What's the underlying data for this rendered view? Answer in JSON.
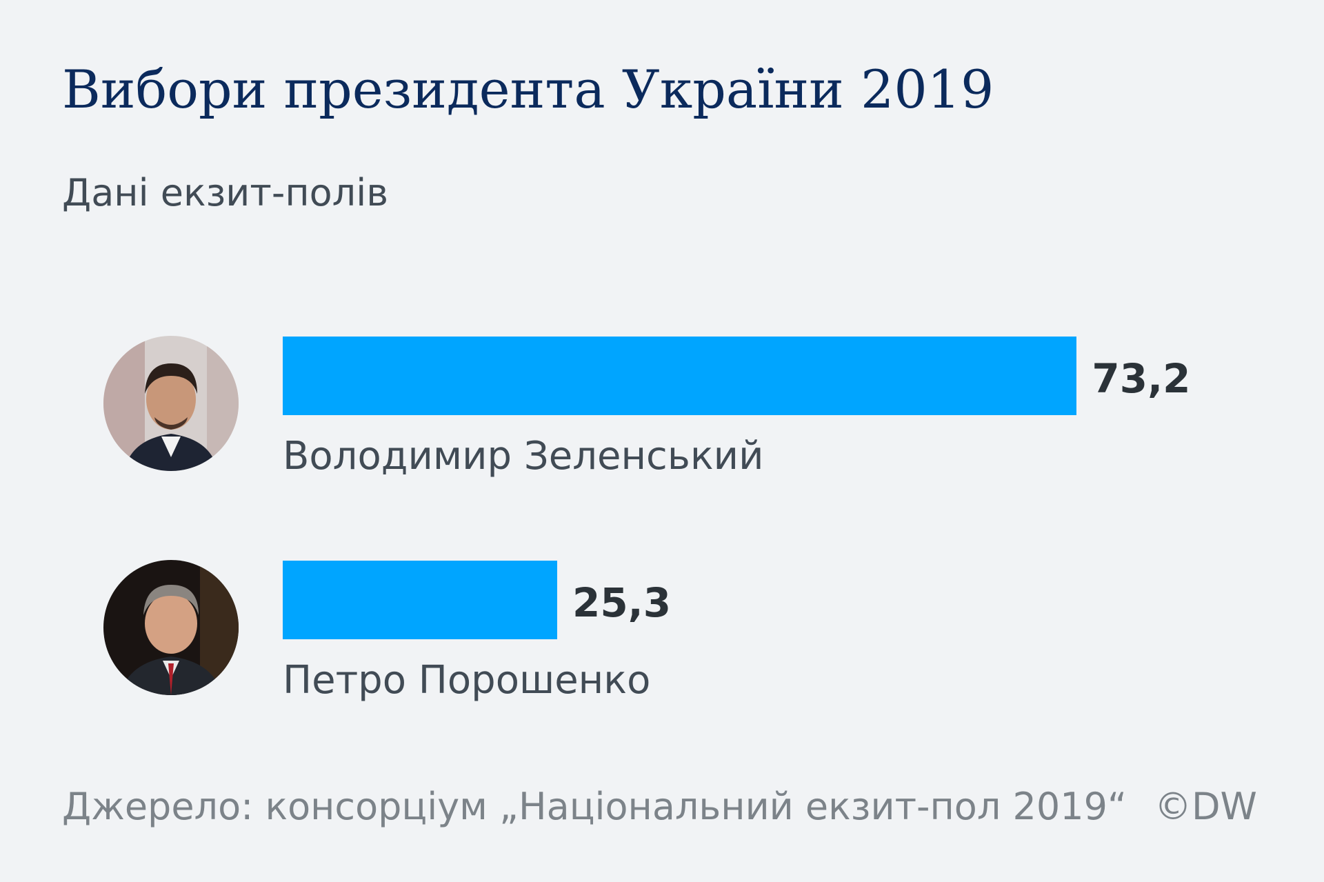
{
  "title": "Вибори президента України 2019",
  "subtitle": "Дані екзит-полів",
  "footer": {
    "source": "Джерело: консорціум „Національний екзит-пол 2019“",
    "copyright": "©DW"
  },
  "colors": {
    "bar": "#00a5ff",
    "title": "#0b2a5c",
    "text": "#414b55",
    "value": "#2b3238",
    "background": "#f1f3f5"
  },
  "chart_data": {
    "type": "bar",
    "orientation": "horizontal",
    "categories": [
      "Володимир Зеленський",
      "Петро Порошенко"
    ],
    "values": [
      73.2,
      25.3
    ],
    "value_labels": [
      "73,2",
      "25,3"
    ],
    "xlim": [
      0,
      100
    ],
    "grid": false,
    "title": "Вибори президента України 2019",
    "subtitle": "Дані екзит-полів",
    "avatars": [
      "avatar-zelensky-icon",
      "avatar-poroshenko-icon"
    ]
  }
}
